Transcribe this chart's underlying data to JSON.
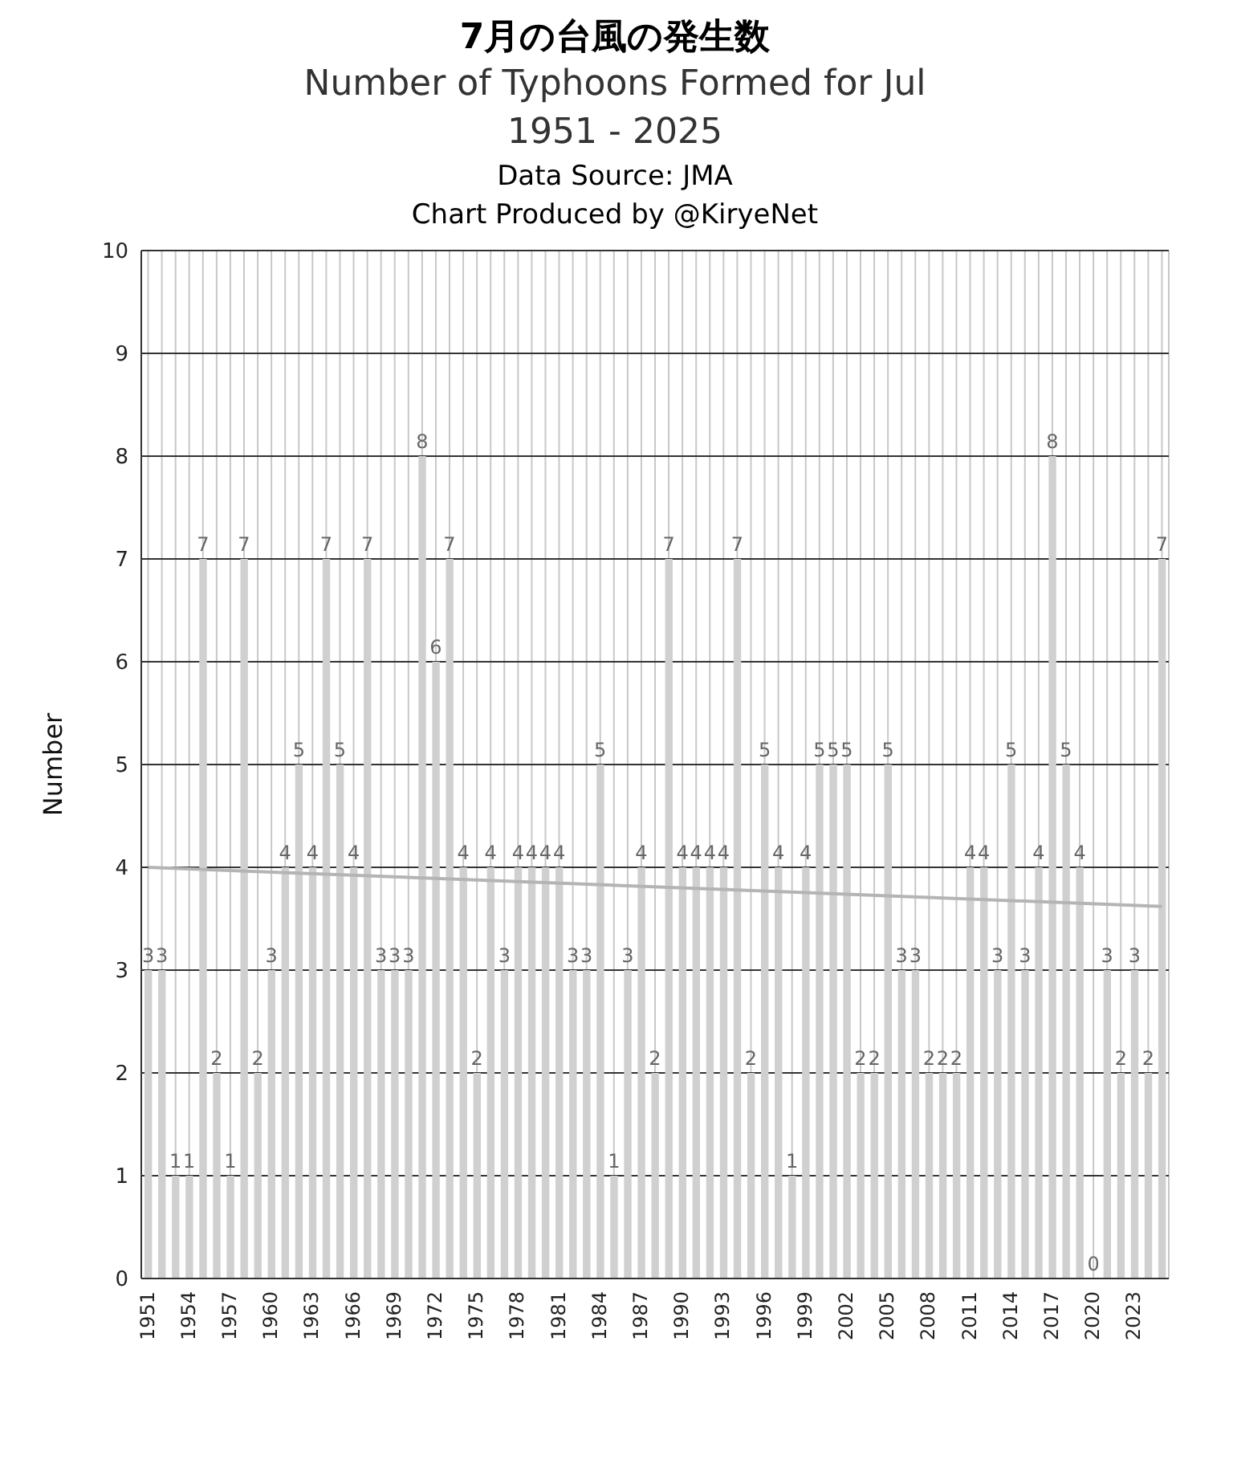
{
  "chart_data": {
    "type": "bar",
    "title": "7月の台風の発生数",
    "subtitle": "Number of Typhoons Formed for Jul\n1951 - 2025",
    "annotations": [
      "Data Source: JMA",
      "Chart Produced by @KiryeNet"
    ],
    "ylabel": "Number",
    "x": [
      1951,
      1952,
      1953,
      1954,
      1955,
      1956,
      1957,
      1958,
      1959,
      1960,
      1961,
      1962,
      1963,
      1964,
      1965,
      1966,
      1967,
      1968,
      1969,
      1970,
      1971,
      1972,
      1973,
      1974,
      1975,
      1976,
      1977,
      1978,
      1979,
      1980,
      1981,
      1982,
      1983,
      1984,
      1985,
      1986,
      1987,
      1988,
      1989,
      1990,
      1991,
      1992,
      1993,
      1994,
      1995,
      1996,
      1997,
      1998,
      1999,
      2000,
      2001,
      2002,
      2003,
      2004,
      2005,
      2006,
      2007,
      2008,
      2009,
      2010,
      2011,
      2012,
      2013,
      2014,
      2015,
      2016,
      2017,
      2018,
      2019,
      2020,
      2021,
      2022,
      2023,
      2024,
      2025
    ],
    "series": [
      {
        "color": "#d0d0d0",
        "values": [
          3,
          3,
          1,
          1,
          7,
          2,
          1,
          7,
          2,
          3,
          4,
          5,
          4,
          7,
          5,
          4,
          7,
          3,
          3,
          3,
          8,
          6,
          7,
          4,
          2,
          4,
          3,
          4,
          4,
          4,
          4,
          3,
          3,
          5,
          1,
          3,
          4,
          2,
          7,
          4,
          4,
          4,
          4,
          7,
          2,
          5,
          4,
          1,
          4,
          5,
          5,
          5,
          2,
          2,
          5,
          3,
          3,
          2,
          2,
          2,
          4,
          4,
          3,
          5,
          3,
          4,
          8,
          5,
          4,
          0,
          3,
          2,
          3,
          2,
          7
        ],
        "value_labels": [
          "3",
          "3",
          "1",
          "1",
          "7",
          "2",
          "1",
          "7",
          "2",
          "3",
          "4",
          "5",
          "4",
          "7",
          "5",
          "4",
          "7",
          "3",
          "3",
          "3",
          "8",
          "6",
          "7",
          "4",
          "2",
          "4",
          "3",
          "4",
          "4",
          "4",
          "4",
          "3",
          "3",
          "5",
          "1",
          "3",
          "4",
          "2",
          "7",
          "4",
          "4",
          "4",
          "4",
          "7",
          "2",
          "5",
          "4",
          "1",
          "4",
          "5",
          "5",
          "5",
          "2",
          "2",
          "5",
          "3",
          "3",
          "2",
          "2",
          "2",
          "4",
          "4",
          "3",
          "5",
          "3",
          "4",
          "8",
          "5",
          "4",
          "0",
          "3",
          "2",
          "3",
          "2",
          "7"
        ]
      },
      {
        "type": "line",
        "color": "#b4b4b4",
        "x": [
          1951,
          2025
        ],
        "values": [
          4.0,
          3.62
        ]
      }
    ],
    "xlim": [
      1950.5,
      2025.5
    ],
    "xticks": [
      1951,
      {
        "value": 1952,
        "label": null
      },
      {
        "value": 1953,
        "label": null
      },
      1954,
      {
        "value": 1955,
        "label": null
      },
      {
        "value": 1956,
        "label": null
      },
      1957,
      {
        "value": 1958,
        "label": null
      },
      {
        "value": 1959,
        "label": null
      },
      1960,
      {
        "value": 1961,
        "label": null
      },
      {
        "value": 1962,
        "label": null
      },
      1963,
      {
        "value": 1964,
        "label": null
      },
      {
        "value": 1965,
        "label": null
      },
      1966,
      {
        "value": 1967,
        "label": null
      },
      {
        "value": 1968,
        "label": null
      },
      1969,
      {
        "value": 1970,
        "label": null
      },
      {
        "value": 1971,
        "label": null
      },
      1972,
      {
        "value": 1973,
        "label": null
      },
      {
        "value": 1974,
        "label": null
      },
      1975,
      {
        "value": 1976,
        "label": null
      },
      {
        "value": 1977,
        "label": null
      },
      1978,
      {
        "value": 1979,
        "label": null
      },
      {
        "value": 1980,
        "label": null
      },
      1981,
      {
        "value": 1982,
        "label": null
      },
      {
        "value": 1983,
        "label": null
      },
      1984,
      {
        "value": 1985,
        "label": null
      },
      {
        "value": 1986,
        "label": null
      },
      1987,
      {
        "value": 1988,
        "label": null
      },
      {
        "value": 1989,
        "label": null
      },
      1990,
      {
        "value": 1991,
        "label": null
      },
      {
        "value": 1992,
        "label": null
      },
      1993,
      {
        "value": 1994,
        "label": null
      },
      {
        "value": 1995,
        "label": null
      },
      1996,
      {
        "value": 1997,
        "label": null
      },
      {
        "value": 1998,
        "label": null
      },
      1999,
      {
        "value": 2000,
        "label": null
      },
      {
        "value": 2001,
        "label": null
      },
      2002,
      {
        "value": 2003,
        "label": null
      },
      {
        "value": 2004,
        "label": null
      },
      2005,
      {
        "value": 2006,
        "label": null
      },
      {
        "value": 2007,
        "label": null
      },
      2008,
      {
        "value": 2009,
        "label": null
      },
      {
        "value": 2010,
        "label": null
      },
      2011,
      {
        "value": 2012,
        "label": null
      },
      {
        "value": 2013,
        "label": null
      },
      2014,
      {
        "value": 2015,
        "label": null
      },
      {
        "value": 2016,
        "label": null
      },
      2017,
      {
        "value": 2018,
        "label": null
      },
      {
        "value": 2019,
        "label": null
      },
      2020,
      {
        "value": 2021,
        "label": null
      },
      {
        "value": 2022,
        "label": null
      },
      2023,
      {
        "value": 2024,
        "label": null
      },
      {
        "value": 2025,
        "label": null
      }
    ],
    "ylim": [
      0,
      10
    ],
    "yticks": [
      0,
      1,
      2,
      3,
      4,
      5,
      6,
      7,
      8,
      9,
      10
    ],
    "grid": true
  }
}
